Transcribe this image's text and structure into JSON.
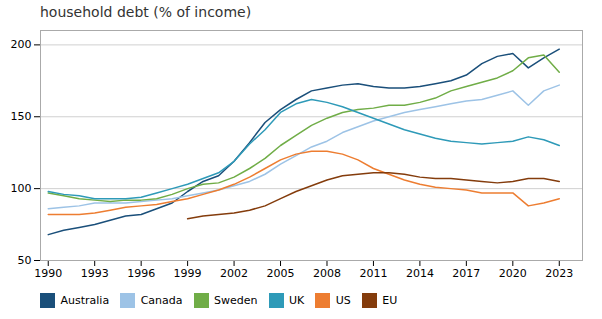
{
  "chart_data": {
    "type": "line",
    "title": "household debt (% of income)",
    "x": [
      1990,
      1991,
      1992,
      1993,
      1994,
      1995,
      1996,
      1997,
      1998,
      1999,
      2000,
      2001,
      2002,
      2003,
      2004,
      2005,
      2006,
      2007,
      2008,
      2009,
      2010,
      2011,
      2012,
      2013,
      2014,
      2015,
      2016,
      2017,
      2018,
      2019,
      2020,
      2021,
      2022,
      2023
    ],
    "series": [
      {
        "name": "Australia",
        "color": "#1a4f7a",
        "values": [
          68,
          71,
          73,
          75,
          78,
          81,
          82,
          86,
          90,
          98,
          105,
          109,
          119,
          132,
          146,
          155,
          162,
          168,
          170,
          172,
          173,
          171,
          170,
          170,
          171,
          173,
          175,
          179,
          187,
          192,
          194,
          184,
          191,
          197
        ]
      },
      {
        "name": "Canada",
        "color": "#9dc3e6",
        "values": [
          86,
          87,
          88,
          90,
          90,
          90,
          91,
          92,
          93,
          95,
          97,
          99,
          102,
          105,
          110,
          117,
          123,
          129,
          133,
          139,
          143,
          147,
          150,
          153,
          155,
          157,
          159,
          161,
          162,
          165,
          168,
          158,
          168,
          172
        ]
      },
      {
        "name": "Sweden",
        "color": "#70ad47",
        "values": [
          97,
          95,
          93,
          92,
          91,
          92,
          92,
          93,
          96,
          100,
          103,
          104,
          108,
          114,
          121,
          130,
          137,
          144,
          149,
          153,
          155,
          156,
          158,
          158,
          160,
          163,
          168,
          171,
          174,
          177,
          182,
          191,
          193,
          181
        ]
      },
      {
        "name": "UK",
        "color": "#2e9ab8",
        "values": [
          98,
          96,
          95,
          93,
          93,
          93,
          94,
          97,
          100,
          103,
          107,
          111,
          119,
          131,
          141,
          153,
          159,
          162,
          160,
          157,
          153,
          149,
          145,
          141,
          138,
          135,
          133,
          132,
          131,
          132,
          133,
          136,
          134,
          130
        ]
      },
      {
        "name": "US",
        "color": "#ed7d31",
        "values": [
          82,
          82,
          82,
          83,
          85,
          87,
          88,
          89,
          91,
          93,
          96,
          99,
          103,
          108,
          114,
          120,
          124,
          126,
          126,
          124,
          120,
          114,
          110,
          106,
          103,
          101,
          100,
          99,
          97,
          97,
          97,
          88,
          90,
          93
        ]
      },
      {
        "name": "EU",
        "color": "#843c0c",
        "values": [
          null,
          null,
          null,
          null,
          null,
          null,
          null,
          null,
          null,
          79,
          81,
          82,
          83,
          85,
          88,
          93,
          98,
          102,
          106,
          109,
          110,
          111,
          111,
          110,
          108,
          107,
          107,
          106,
          105,
          104,
          105,
          107,
          107,
          105
        ]
      }
    ],
    "xlim": [
      1989.5,
      2024.5
    ],
    "ylim": [
      50,
      210
    ],
    "xticks": [
      1990,
      1993,
      1996,
      1999,
      2002,
      2005,
      2008,
      2011,
      2014,
      2017,
      2020,
      2023
    ],
    "yticks": [
      50,
      100,
      150,
      200
    ],
    "grid": true,
    "legend": "bottom"
  }
}
